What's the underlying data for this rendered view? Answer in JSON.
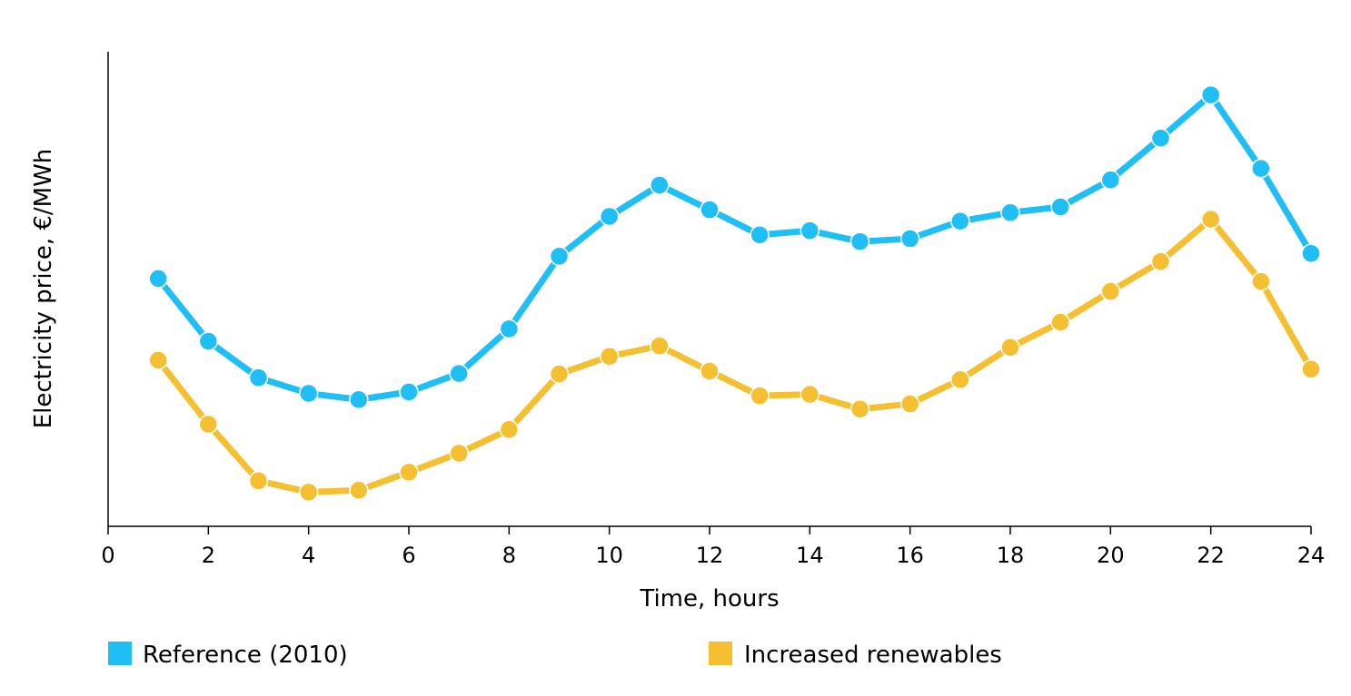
{
  "chart_data": {
    "type": "line",
    "xlabel": "Time, hours",
    "ylabel": "Electricity price, €/MWh",
    "xlim": [
      0,
      24
    ],
    "xticks": [
      0,
      2,
      4,
      6,
      8,
      10,
      12,
      14,
      16,
      18,
      20,
      22,
      24
    ],
    "y_tick_labels_shown": false,
    "ylim": [
      0,
      100
    ],
    "grid": false,
    "legend_position": "bottom",
    "x": [
      1,
      2,
      3,
      4,
      5,
      6,
      7,
      8,
      9,
      10,
      11,
      12,
      13,
      14,
      15,
      16,
      17,
      18,
      19,
      20,
      21,
      22,
      23,
      24
    ],
    "series": [
      {
        "name": "Reference (2010)",
        "color": "#1fbff5",
        "values": [
          52.2,
          39.0,
          31.3,
          28.0,
          26.7,
          28.3,
          32.2,
          41.6,
          56.9,
          65.3,
          71.9,
          66.7,
          61.4,
          62.3,
          60.0,
          60.6,
          64.3,
          66.1,
          67.3,
          73.0,
          81.8,
          90.9,
          75.4,
          57.5
        ]
      },
      {
        "name": "Increased renewables",
        "color": "#f5bf32",
        "values": [
          35.0,
          21.5,
          9.6,
          7.2,
          7.6,
          11.4,
          15.4,
          20.4,
          32.1,
          35.8,
          38.0,
          32.7,
          27.5,
          27.8,
          24.7,
          25.8,
          30.9,
          37.7,
          43.0,
          49.5,
          55.8,
          64.7,
          51.6,
          33.1
        ]
      }
    ]
  }
}
